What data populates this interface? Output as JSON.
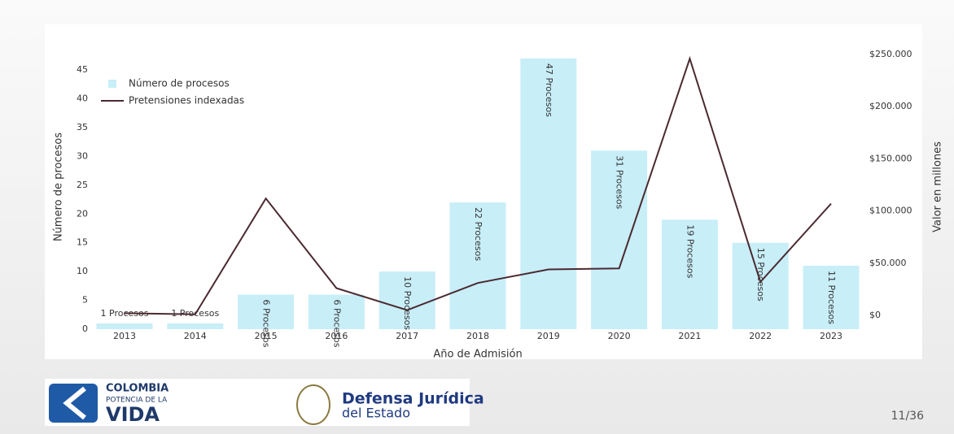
{
  "chart_data": {
    "type": "bar",
    "categories": [
      "2013",
      "2014",
      "2015",
      "2016",
      "2017",
      "2018",
      "2019",
      "2020",
      "2021",
      "2022",
      "2023"
    ],
    "series": [
      {
        "name": "Número de procesos",
        "type": "bar",
        "color": "#c8eef8",
        "values": [
          1,
          1,
          6,
          6,
          10,
          22,
          47,
          31,
          19,
          15,
          11
        ],
        "value_labels": [
          "1 Procesos",
          "1 Procesos",
          "6 Procesos",
          "6 Procesos",
          "10 Procesos",
          "22 Procesos",
          "47 Procesos",
          "31 Procesos",
          "19 Procesos",
          "15 Procesos",
          "11 Procesos"
        ]
      },
      {
        "name": "Pretensiones indexadas",
        "type": "line",
        "axis": "y2",
        "color": "#4a2a30",
        "values": [
          2000,
          1000,
          112000,
          26000,
          5000,
          31000,
          44000,
          45000,
          246000,
          32000,
          107000
        ]
      }
    ],
    "xlabel": "Año de Admisión",
    "ylabel": "Número de procesos",
    "y2label": "Valor en millones",
    "ylim": [
      0,
      47.7
    ],
    "yticks": [
      0,
      5,
      10,
      15,
      20,
      25,
      30,
      35,
      40,
      45
    ],
    "y2lim": [
      -13240,
      250000
    ],
    "y2ticks": [
      {
        "value": 0,
        "label": "$0"
      },
      {
        "value": 50000,
        "label": "$50.000"
      },
      {
        "value": 100000,
        "label": "$100.000"
      },
      {
        "value": 150000,
        "label": "$150.000"
      },
      {
        "value": 200000,
        "label": "$200.000"
      },
      {
        "value": 250000,
        "label": "$250.000"
      }
    ],
    "legend": "upper left",
    "grid": false
  },
  "footer": {
    "logo1": [
      "COLOMBIA",
      "POTENCIA DE LA",
      "VIDA"
    ],
    "logo2": [
      "Defensa Jurídica",
      "del Estado"
    ],
    "page": "11/36"
  }
}
